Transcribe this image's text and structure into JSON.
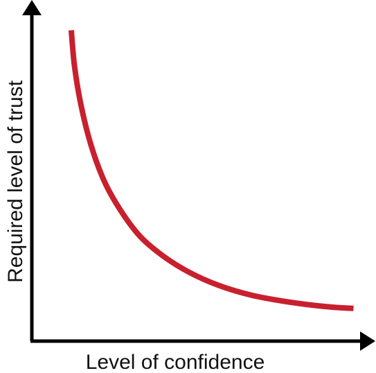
{
  "chart_data": {
    "type": "line",
    "title": "",
    "xlabel": "Level of confidence",
    "ylabel": "Required level of trust",
    "xlim": [
      0,
      10
    ],
    "ylim": [
      0,
      10
    ],
    "grid": false,
    "legend": "none",
    "tick_labels": false,
    "series": [
      {
        "color": "#c8202e",
        "x": [
          1.2,
          1.3,
          1.5,
          1.8,
          2.2,
          2.7,
          3.3,
          4.0,
          4.8,
          5.7,
          6.7,
          7.8,
          9.0,
          9.8
        ],
        "y": [
          9.5,
          8.4,
          7.2,
          6.0,
          4.9,
          4.0,
          3.2,
          2.6,
          2.1,
          1.7,
          1.4,
          1.2,
          1.05,
          1.0
        ]
      }
    ]
  }
}
